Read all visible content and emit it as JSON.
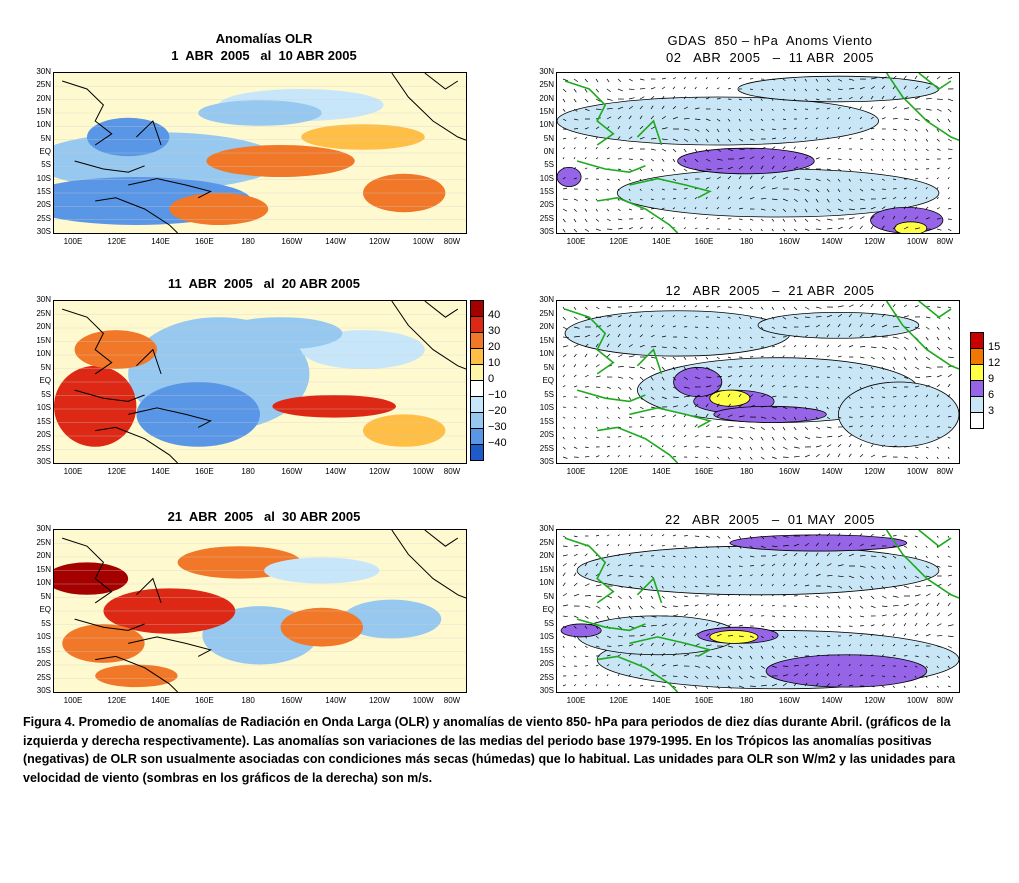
{
  "panels": [
    {
      "id": "olr-1",
      "side": "left",
      "title": "Anomalías OLR\n1  ABR  2005   al  10 ABR 2005",
      "lon_labels": [
        "100E",
        "120E",
        "140E",
        "160E",
        "180",
        "160W",
        "140W",
        "120W",
        "100W",
        "80W"
      ],
      "lat_labels": [
        "30N",
        "25N",
        "20N",
        "15N",
        "10N",
        "5N",
        "EQ",
        "5S",
        "10S",
        "15S",
        "20S",
        "25S",
        "30S"
      ]
    },
    {
      "id": "wind-1",
      "side": "right",
      "title": "GDAS  850 – hPa  Anoms Viento\n02   ABR  2005   –  11 ABR  2005",
      "lon_labels": [
        "100E",
        "120E",
        "140E",
        "160E",
        "180",
        "160W",
        "140W",
        "120W",
        "100W",
        "80W"
      ],
      "lat_labels": [
        "30N",
        "25N",
        "20N",
        "15N",
        "10N",
        "5N",
        "0N",
        "5S",
        "10S",
        "15S",
        "20S",
        "25S",
        "30S"
      ]
    },
    {
      "id": "olr-2",
      "side": "left",
      "title": "11  ABR  2005   al  20 ABR 2005",
      "lon_labels": [
        "100E",
        "120E",
        "140E",
        "160E",
        "180",
        "160W",
        "140W",
        "120W",
        "100W",
        "80W"
      ],
      "lat_labels": [
        "30N",
        "25N",
        "20N",
        "15N",
        "10N",
        "5N",
        "EQ",
        "5S",
        "10S",
        "15S",
        "20S",
        "25S",
        "30S"
      ]
    },
    {
      "id": "wind-2",
      "side": "right",
      "title": "12   ABR  2005   –  21 ABR  2005",
      "lon_labels": [
        "100E",
        "120E",
        "140E",
        "160E",
        "180",
        "160W",
        "140W",
        "120W",
        "100W",
        "80W"
      ],
      "lat_labels": [
        "30N",
        "25N",
        "20N",
        "15N",
        "10N",
        "5N",
        "EQ",
        "5S",
        "10S",
        "15S",
        "20S",
        "25S",
        "30S"
      ]
    },
    {
      "id": "olr-3",
      "side": "left",
      "title": "21  ABR  2005   al  30 ABR 2005",
      "lon_labels": [
        "100E",
        "120E",
        "140E",
        "160E",
        "180",
        "160W",
        "140W",
        "120W",
        "100W",
        "80W"
      ],
      "lat_labels": [
        "30N",
        "25N",
        "20N",
        "15N",
        "10N",
        "5N",
        "EQ",
        "5S",
        "10S",
        "15S",
        "20S",
        "25S",
        "30S"
      ]
    },
    {
      "id": "wind-3",
      "side": "right",
      "title": "22   ABR  2005   –  01 MAY  2005",
      "lon_labels": [
        "100E",
        "120E",
        "140E",
        "160E",
        "180",
        "160W",
        "140W",
        "120W",
        "100W",
        "80W"
      ],
      "lat_labels": [
        "30N",
        "25N",
        "20N",
        "15N",
        "10N",
        "5N",
        "EQ",
        "5S",
        "10S",
        "15S",
        "20S",
        "25S",
        "30S"
      ]
    }
  ],
  "olr_colorbar": {
    "labels": [
      "40",
      "30",
      "20",
      "10",
      "0",
      "−10",
      "−20",
      "−30",
      "−40"
    ],
    "colors": [
      "#a50000",
      "#dc2814",
      "#f07828",
      "#ffbe46",
      "#fff5aa",
      "#ffffff",
      "#c8e6fa",
      "#96c8f0",
      "#5a96e6",
      "#1e5ac8"
    ]
  },
  "wind_colorbar": {
    "labels": [
      "15",
      "12",
      "9",
      "6",
      "3"
    ],
    "colors": [
      "#c80000",
      "#f07800",
      "#ffff46",
      "#9664e6",
      "#c8e6f5",
      "#ffffff"
    ]
  },
  "colors": {
    "coastline_olr": "#000000",
    "coastline_wind": "#1eaa1e",
    "contour": "#000000"
  },
  "caption": "Figura 4. Promedio  de  anomalías  de Radiación  en  Onda Larga (OLR)  y  anomalías de viento 850- hPa  para  periodos de diez días durante Abril. (gráficos de la  izquierda y derecha respectivamente). Las anomalías son variaciones  de las  medias del periodo base 1979-1995.  En los  Trópicos  las  anomalías  positivas  (negativas)  de  OLR  son  usualmente asociadas  con  condiciones más secas (húmedas) que lo habitual. Las unidades para OLR son W/m2 y las unidades para velocidad de viento (sombras en los gráficos de la derecha)  son m/s."
}
